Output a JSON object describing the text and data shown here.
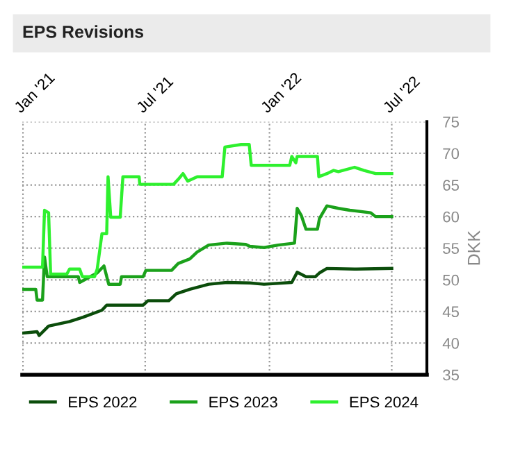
{
  "chart_data": {
    "type": "line",
    "title": "EPS Revisions",
    "ylabel": "DKK",
    "xlim": [
      "2020-12-31",
      "2022-08-22"
    ],
    "ylim": [
      35,
      75
    ],
    "yticks": [
      35,
      40,
      45,
      50,
      55,
      60,
      65,
      70,
      75
    ],
    "xticks": [
      {
        "value": "2021-01-01",
        "label": "Jan '21"
      },
      {
        "value": "2021-07-01",
        "label": "Jul '21"
      },
      {
        "value": "2022-01-01",
        "label": "Jan '22"
      },
      {
        "value": "2022-07-01",
        "label": "Jul '22"
      }
    ],
    "grid": true,
    "legend": "bottom",
    "marker": "none",
    "line_style": "solid",
    "series": [
      {
        "name": "EPS 2022",
        "color": "#0b4d0b",
        "x": [
          "2021-01-01",
          "2021-01-22",
          "2021-01-25",
          "2021-02-08",
          "2021-03-11",
          "2021-03-31",
          "2021-04-28",
          "2021-05-05",
          "2021-06-28",
          "2021-07-05",
          "2021-08-05",
          "2021-08-16",
          "2021-09-05",
          "2021-10-03",
          "2021-10-30",
          "2021-12-03",
          "2021-12-24",
          "2022-02-03",
          "2022-02-11",
          "2022-02-24",
          "2022-03-10",
          "2022-03-16",
          "2022-03-27",
          "2022-05-10",
          "2022-07-01"
        ],
        "values": [
          41.6,
          41.8,
          41.2,
          42.7,
          43.4,
          44.1,
          45.2,
          46.0,
          46.0,
          46.7,
          46.7,
          47.8,
          48.5,
          49.3,
          49.6,
          49.5,
          49.3,
          49.6,
          51.2,
          50.5,
          50.5,
          51.1,
          51.8,
          51.7,
          51.8
        ]
      },
      {
        "name": "EPS 2023",
        "color": "#1ba11b",
        "x": [
          "2021-01-01",
          "2021-01-20",
          "2021-01-22",
          "2021-01-30",
          "2021-02-02",
          "2021-02-06",
          "2021-03-24",
          "2021-03-26",
          "2021-04-21",
          "2021-05-01",
          "2021-05-08",
          "2021-05-25",
          "2021-05-27",
          "2021-06-28",
          "2021-07-02",
          "2021-08-09",
          "2021-08-19",
          "2021-09-05",
          "2021-09-16",
          "2021-10-03",
          "2021-10-30",
          "2021-11-27",
          "2021-12-03",
          "2021-12-24",
          "2022-01-14",
          "2022-02-07",
          "2022-02-11",
          "2022-02-17",
          "2022-02-24",
          "2022-03-13",
          "2022-03-16",
          "2022-03-27",
          "2022-04-13",
          "2022-04-30",
          "2022-05-31",
          "2022-06-07",
          "2022-07-01"
        ],
        "values": [
          48.5,
          48.5,
          46.8,
          46.8,
          53.6,
          50.5,
          50.5,
          49.6,
          51.1,
          52.2,
          49.3,
          49.3,
          50.5,
          50.5,
          51.5,
          51.5,
          52.6,
          53.3,
          54.4,
          55.5,
          55.8,
          55.6,
          55.3,
          55.1,
          55.5,
          55.8,
          61.3,
          60.2,
          58.0,
          58.0,
          59.7,
          61.7,
          61.3,
          61.0,
          60.6,
          60.0,
          60.0
        ]
      },
      {
        "name": "EPS 2024",
        "color": "#2ef02e",
        "x": [
          "2021-01-01",
          "2021-01-30",
          "2021-02-02",
          "2021-02-08",
          "2021-02-11",
          "2021-03-07",
          "2021-03-11",
          "2021-03-26",
          "2021-03-30",
          "2021-04-17",
          "2021-04-21",
          "2021-04-28",
          "2021-05-05",
          "2021-05-07",
          "2021-05-11",
          "2021-05-25",
          "2021-05-29",
          "2021-06-22",
          "2021-06-23",
          "2021-08-12",
          "2021-08-19",
          "2021-08-26",
          "2021-09-02",
          "2021-09-16",
          "2021-10-23",
          "2021-10-27",
          "2021-11-20",
          "2021-12-02",
          "2021-12-05",
          "2022-01-31",
          "2022-02-03",
          "2022-02-09",
          "2022-02-11",
          "2022-03-13",
          "2022-03-15",
          "2022-03-27",
          "2022-04-06",
          "2022-04-13",
          "2022-05-07",
          "2022-05-21",
          "2022-06-07",
          "2022-07-01"
        ],
        "values": [
          52.0,
          52.0,
          61.0,
          60.6,
          50.9,
          50.9,
          51.7,
          51.7,
          50.5,
          50.5,
          51.7,
          57.3,
          57.3,
          66.3,
          59.9,
          59.9,
          66.3,
          66.3,
          65.1,
          65.1,
          65.9,
          66.8,
          65.6,
          66.3,
          66.3,
          71.0,
          71.4,
          71.4,
          68.1,
          68.1,
          69.5,
          68.5,
          69.5,
          69.5,
          66.3,
          66.8,
          67.3,
          67.1,
          67.8,
          67.3,
          66.8,
          66.8
        ]
      }
    ]
  }
}
